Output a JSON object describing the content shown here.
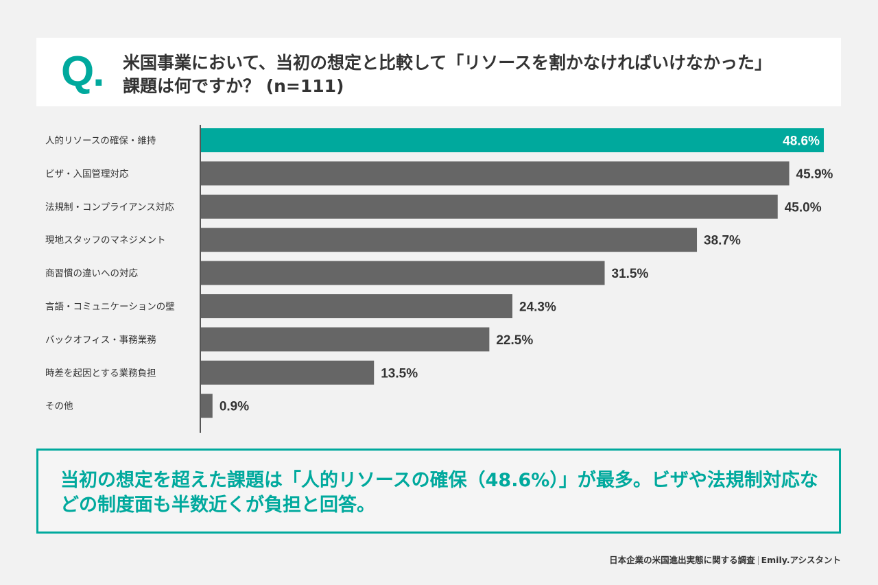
{
  "header": {
    "q_mark": "Q.",
    "title_line1": "米国事業において、当初の想定と比較して「リソースを割かなければいけなかった」",
    "title_line2": "課題は何ですか？ (n=111)"
  },
  "chart_data": {
    "type": "bar",
    "orientation": "horizontal",
    "title": "米国事業において、当初の想定と比較して「リソースを割かなければいけなかった」課題は何ですか？ (n=111)",
    "categories": [
      "人的リソースの確保・維持",
      "ビザ・入国管理対応",
      "法規制・コンプライアンス対応",
      "現地スタッフのマネジメント",
      "商習慣の違いへの対応",
      "言語・コミュニケーションの壁",
      "バックオフィス・事務業務",
      "時差を起因とする業務負担",
      "その他"
    ],
    "values": [
      48.6,
      45.9,
      45.0,
      38.7,
      31.5,
      24.3,
      22.5,
      13.5,
      0.9
    ],
    "labels": [
      "48.6%",
      "45.9%",
      "45.0%",
      "38.7%",
      "31.5%",
      "24.3%",
      "22.5%",
      "13.5%",
      "0.9%"
    ],
    "unit": "%",
    "highlight_index": 0,
    "colors": {
      "highlight": "#00a99d",
      "default": "#666666"
    },
    "xlim": [
      0,
      48.6
    ],
    "grid": false
  },
  "summary": {
    "text": "当初の想定を超えた課題は「人的リソースの確保（48.6%）」が最多。ビザや法規制対応などの制度面も半数近くが負担と回答。"
  },
  "footer": {
    "source": "日本企業の米国進出実態に関する調査",
    "brand": "Emily.アシスタント"
  }
}
